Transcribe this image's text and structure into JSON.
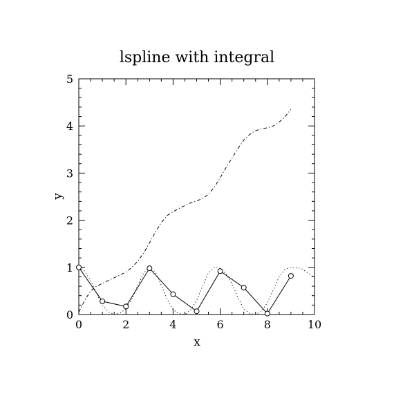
{
  "chart_data": {
    "type": "line",
    "title": "lspline with integral",
    "xlabel": "x",
    "ylabel": "y",
    "xlim": [
      0,
      10
    ],
    "ylim": [
      0,
      5
    ],
    "xticks": [
      "0",
      "2",
      "4",
      "6",
      "8",
      "10"
    ],
    "yticks": [
      "0",
      "1",
      "2",
      "3",
      "4",
      "5"
    ],
    "grid": false,
    "series": [
      {
        "style": "solid-with-circle-markers",
        "color": "#000000",
        "x": [
          0,
          1,
          2,
          3,
          4,
          5,
          6,
          7,
          8,
          9
        ],
        "y": [
          1.0,
          0.28,
          0.17,
          0.98,
          0.43,
          0.07,
          0.92,
          0.57,
          0.02,
          0.82
        ]
      },
      {
        "style": "dotted",
        "color": "#000000",
        "x": [
          0,
          0.25,
          0.5,
          0.75,
          1,
          1.25,
          1.5,
          1.75,
          2,
          2.25,
          2.5,
          2.75,
          3,
          3.25,
          3.5,
          3.75,
          4,
          4.25,
          4.5,
          4.75,
          5,
          5.25,
          5.5,
          5.75,
          6,
          6.25,
          6.5,
          6.75,
          7,
          7.25,
          7.5,
          7.75,
          8,
          8.25,
          8.5,
          8.75,
          9,
          9.25,
          9.5,
          9.75,
          10
        ],
        "y": [
          1.0,
          0.92,
          0.72,
          0.45,
          0.2,
          0.06,
          0.0,
          0.03,
          0.12,
          0.32,
          0.62,
          0.88,
          1.0,
          0.9,
          0.62,
          0.32,
          0.1,
          0.02,
          0.0,
          0.1,
          0.3,
          0.6,
          0.88,
          1.0,
          0.98,
          0.86,
          0.65,
          0.36,
          0.12,
          0.02,
          0.0,
          0.07,
          0.25,
          0.52,
          0.8,
          0.96,
          1.0,
          1.0,
          0.96,
          0.87,
          0.78
        ]
      },
      {
        "style": "dash-dot",
        "color": "#000000",
        "x": [
          0,
          0.25,
          0.5,
          0.75,
          1,
          1.25,
          1.5,
          1.75,
          2,
          2.25,
          2.5,
          2.75,
          3,
          3.25,
          3.5,
          3.75,
          4,
          4.25,
          4.5,
          4.75,
          5,
          5.25,
          5.5,
          5.75,
          6,
          6.25,
          6.5,
          6.75,
          7,
          7.25,
          7.5,
          7.75,
          8,
          8.25,
          8.5,
          8.75,
          9
        ],
        "y": [
          0.05,
          0.3,
          0.5,
          0.6,
          0.66,
          0.72,
          0.78,
          0.84,
          0.9,
          1.0,
          1.13,
          1.3,
          1.52,
          1.75,
          1.95,
          2.1,
          2.18,
          2.25,
          2.31,
          2.37,
          2.41,
          2.46,
          2.55,
          2.7,
          2.9,
          3.12,
          3.32,
          3.52,
          3.7,
          3.82,
          3.9,
          3.94,
          3.96,
          4.0,
          4.08,
          4.2,
          4.35
        ]
      }
    ]
  }
}
